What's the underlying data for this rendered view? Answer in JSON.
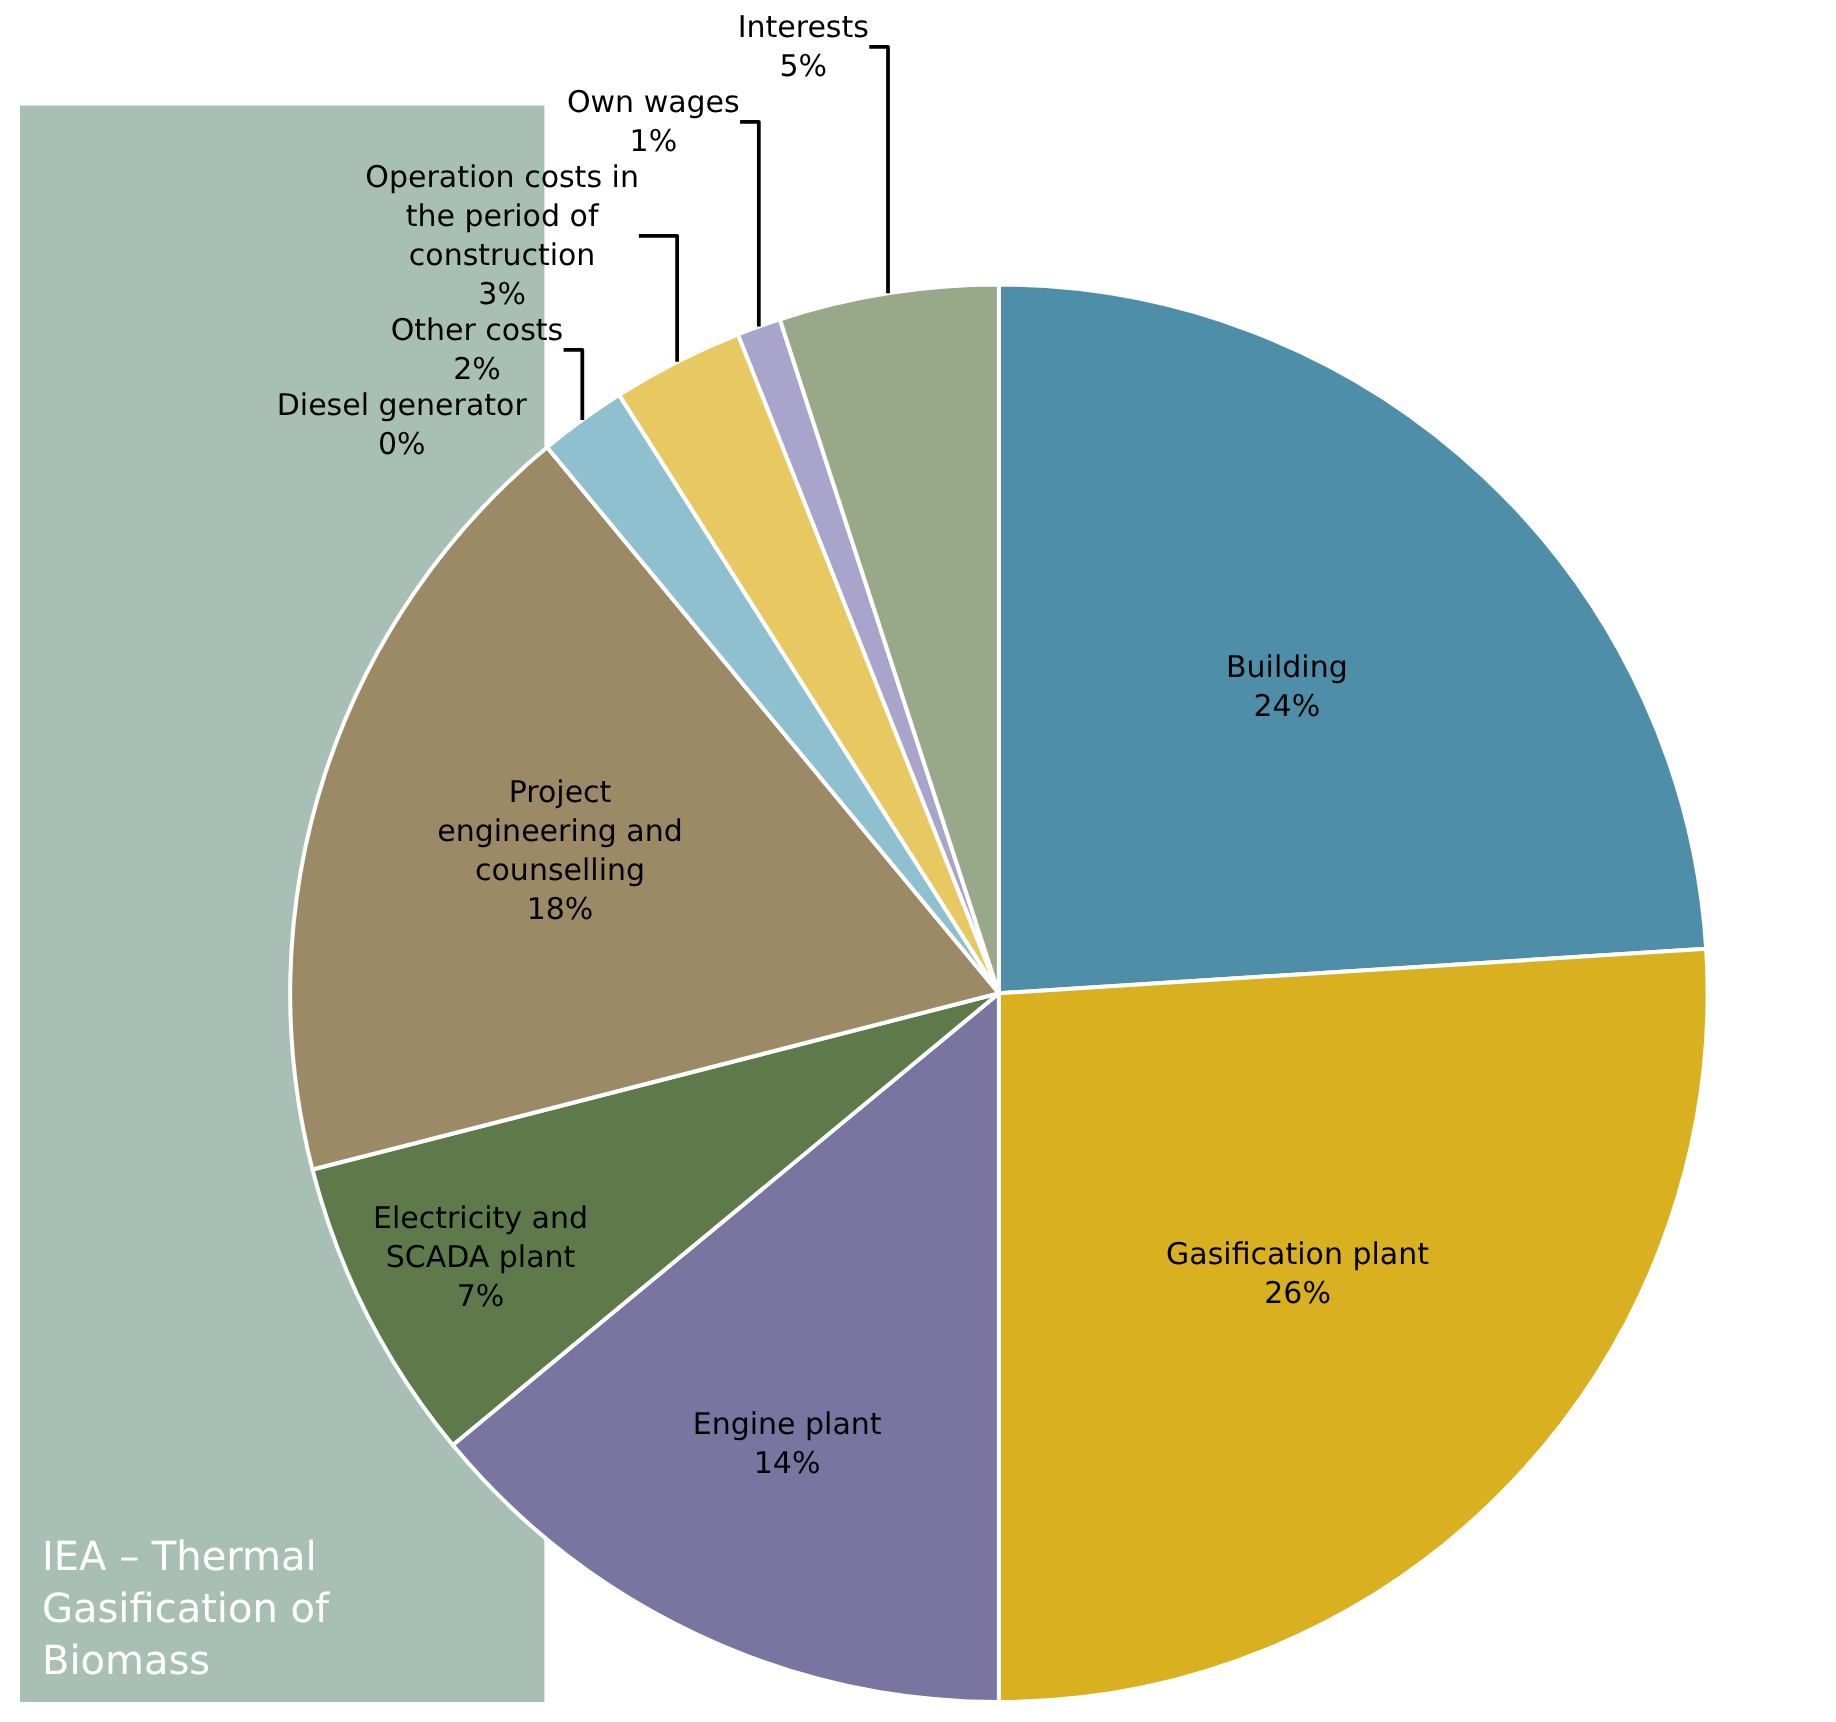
{
  "chart_data": {
    "type": "pie",
    "categories": [
      "Building",
      "Gasification plant",
      "Engine plant",
      "Electricity and SCADA plant",
      "Project engineering and counselling",
      "Diesel generator",
      "Other costs",
      "Operation costs in the period of construction",
      "Own wages",
      "Interests"
    ],
    "values": [
      24,
      26,
      14,
      7,
      18,
      0,
      2,
      3,
      1,
      5
    ],
    "value_labels": [
      "24%",
      "26%",
      "14%",
      "7%",
      "18%",
      "0%",
      "2%",
      "3%",
      "1%",
      "5%"
    ],
    "colors": [
      "#4f8ea8",
      "#d8b020",
      "#7a74a0",
      "#5e7a4a",
      "#9c8a66",
      "#a8d0e0",
      "#8fc0d0",
      "#e8c860",
      "#a8a4cc",
      "#98a888"
    ],
    "annotations": [
      "IEA – Thermal Gasification of Biomass"
    ],
    "legend": false
  }
}
